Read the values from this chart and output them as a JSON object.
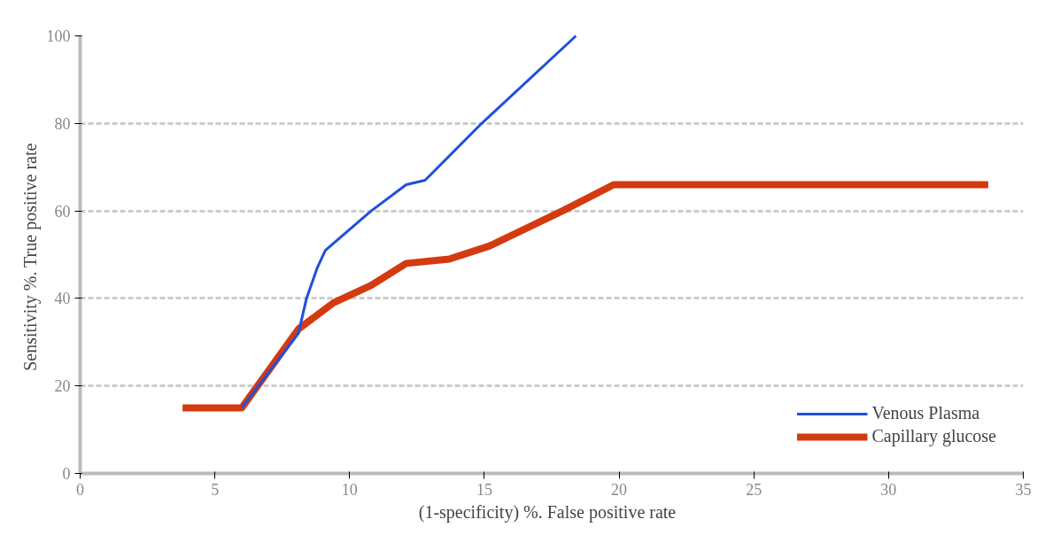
{
  "chart_data": {
    "type": "line",
    "xlabel": "(1-specificity)  %.  False positive rate",
    "ylabel": "Sensitivity %.  True positive rate",
    "xlim": [
      0,
      35
    ],
    "xticks": [
      0,
      5,
      10,
      15,
      20,
      25,
      30,
      35
    ],
    "ylim": [
      0,
      100
    ],
    "yticks": [
      0,
      20,
      40,
      60,
      80,
      100
    ],
    "grid": "y",
    "legend": "bottom right",
    "series": [
      {
        "name": "Venous Plasma",
        "color": "#1f4fe0",
        "x": [
          6.0,
          8.1,
          8.4,
          8.8,
          9.1,
          10.8,
          12.1,
          12.8,
          14.9,
          18.4
        ],
        "values": [
          15,
          32,
          40,
          47,
          51,
          60,
          66,
          67,
          80,
          100
        ]
      },
      {
        "name": "Capillary glucose",
        "color": "#d43a10",
        "x": [
          3.8,
          6.0,
          8.1,
          9.4,
          10.8,
          12.1,
          13.7,
          15.2,
          17.9,
          19.8,
          33.7
        ],
        "values": [
          15,
          15,
          33,
          39,
          43,
          48,
          49,
          52,
          60,
          66,
          66
        ]
      }
    ]
  }
}
